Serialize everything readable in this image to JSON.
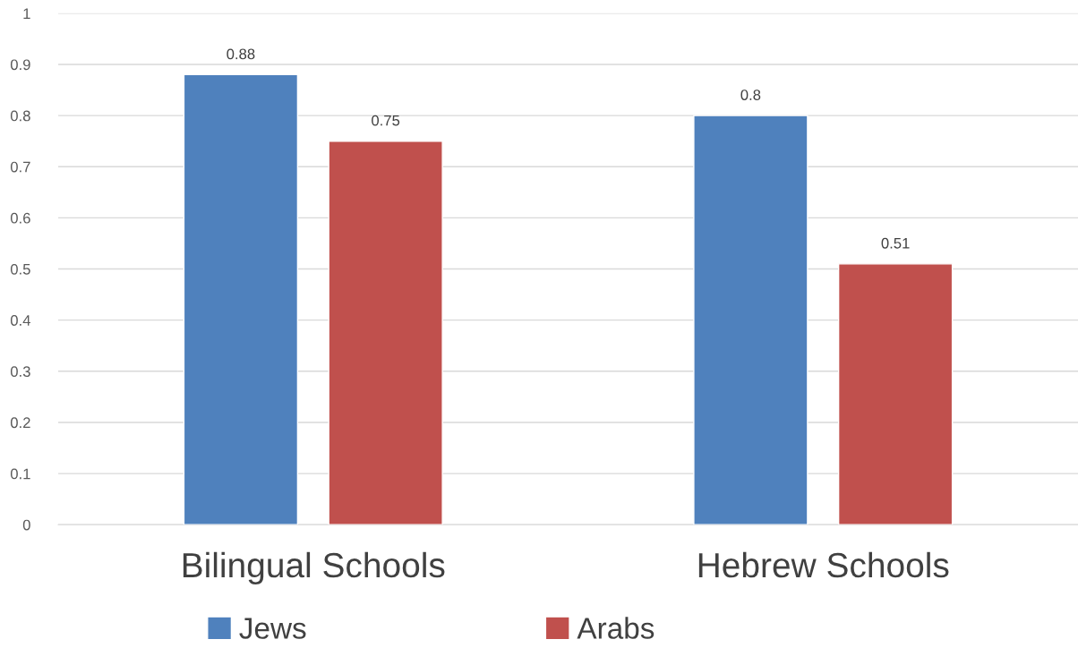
{
  "chart_data": {
    "type": "bar",
    "categories": [
      "Bilingual Schools",
      "Hebrew Schools"
    ],
    "series": [
      {
        "name": "Jews",
        "color": "#4f81bd",
        "values": [
          0.88,
          0.8
        ]
      },
      {
        "name": "Arabs",
        "color": "#c0504d",
        "values": [
          0.75,
          0.51
        ]
      }
    ],
    "ylim": [
      0,
      1
    ],
    "yticks": [
      0,
      0.1,
      0.2,
      0.3,
      0.4,
      0.5,
      0.6,
      0.7,
      0.8,
      0.9,
      1
    ],
    "grid": "y",
    "legend": "bottom",
    "data_labels": true
  }
}
